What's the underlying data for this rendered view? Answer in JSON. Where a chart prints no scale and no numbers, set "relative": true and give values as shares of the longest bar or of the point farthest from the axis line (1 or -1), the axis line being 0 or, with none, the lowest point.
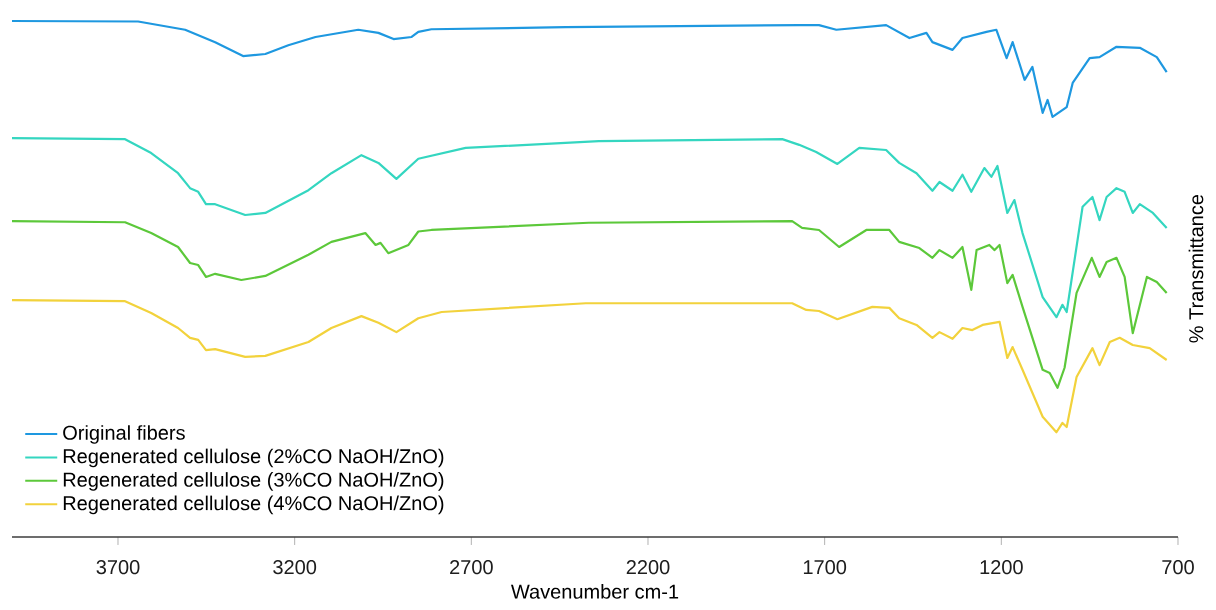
{
  "chart_data": {
    "type": "line",
    "relative": true,
    "xlabel": "Wavenumber cm-1",
    "ylabel": "% Transmittance",
    "xlim": [
      4000,
      700
    ],
    "xticks": [
      3700,
      3200,
      2700,
      2200,
      1700,
      1200,
      700
    ],
    "legend": "bottom left",
    "marker": "none",
    "line_style": "solid",
    "series": [
      {
        "name": "Original fibers",
        "color": "#1e98e0",
        "x": [
          4000,
          3643,
          3510,
          3425,
          3346,
          3283,
          3218,
          3141,
          3020,
          2963,
          2920,
          2869,
          2850,
          2813,
          2433,
          1772,
          1716,
          1667,
          1526,
          1460,
          1412,
          1395,
          1338,
          1310,
          1242,
          1214,
          1185,
          1168,
          1134,
          1112,
          1083,
          1069,
          1055,
          1015,
          998,
          950,
          922,
          874,
          808,
          760,
          732
        ],
        "values": [
          1.0,
          0.999,
          0.983,
          0.959,
          0.932,
          0.936,
          0.953,
          0.969,
          0.983,
          0.977,
          0.965,
          0.969,
          0.979,
          0.984,
          0.988,
          0.992,
          0.992,
          0.983,
          0.992,
          0.967,
          0.977,
          0.959,
          0.944,
          0.967,
          0.979,
          0.983,
          0.928,
          0.959,
          0.886,
          0.911,
          0.822,
          0.847,
          0.814,
          0.833,
          0.88,
          0.928,
          0.93,
          0.95,
          0.948,
          0.93,
          0.901
        ]
      },
      {
        "name": "Regenerated cellulose (2%CO NaOH/ZnO)",
        "color": "#34d6c0",
        "x": [
          4000,
          3680,
          3606,
          3530,
          3496,
          3473,
          3451,
          3425,
          3340,
          3283,
          3161,
          3096,
          3011,
          2963,
          2912,
          2850,
          2716,
          2339,
          1820,
          1772,
          1724,
          1664,
          1602,
          1526,
          1489,
          1440,
          1395,
          1375,
          1338,
          1310,
          1285,
          1248,
          1228,
          1211,
          1183,
          1163,
          1140,
          1083,
          1044,
          1027,
          1015,
          970,
          942,
          922,
          902,
          874,
          851,
          828,
          808,
          771,
          732
        ],
        "values": [
          0.773,
          0.771,
          0.744,
          0.705,
          0.676,
          0.669,
          0.645,
          0.645,
          0.624,
          0.628,
          0.672,
          0.705,
          0.74,
          0.725,
          0.694,
          0.733,
          0.754,
          0.767,
          0.771,
          0.76,
          0.746,
          0.723,
          0.754,
          0.75,
          0.725,
          0.705,
          0.671,
          0.688,
          0.671,
          0.702,
          0.669,
          0.715,
          0.698,
          0.719,
          0.628,
          0.653,
          0.589,
          0.465,
          0.426,
          0.45,
          0.436,
          0.64,
          0.659,
          0.614,
          0.659,
          0.676,
          0.669,
          0.628,
          0.645,
          0.628,
          0.599
        ]
      },
      {
        "name": "Regenerated cellulose (3%CO NaOH/ZnO)",
        "color": "#5cc83a",
        "x": [
          4000,
          3680,
          3606,
          3530,
          3496,
          3473,
          3451,
          3425,
          3351,
          3283,
          3161,
          3096,
          3000,
          2971,
          2957,
          2935,
          2878,
          2850,
          2813,
          2368,
          1792,
          1764,
          1716,
          1659,
          1582,
          1517,
          1489,
          1432,
          1395,
          1375,
          1338,
          1310,
          1285,
          1270,
          1234,
          1219,
          1205,
          1183,
          1168,
          1140,
          1083,
          1063,
          1041,
          1021,
          987,
          944,
          922,
          902,
          874,
          851,
          828,
          788,
          760,
          732
        ],
        "values": [
          0.612,
          0.61,
          0.589,
          0.562,
          0.531,
          0.527,
          0.504,
          0.51,
          0.498,
          0.506,
          0.547,
          0.572,
          0.589,
          0.566,
          0.57,
          0.55,
          0.566,
          0.592,
          0.595,
          0.609,
          0.612,
          0.599,
          0.595,
          0.562,
          0.595,
          0.595,
          0.572,
          0.56,
          0.541,
          0.556,
          0.541,
          0.562,
          0.479,
          0.556,
          0.566,
          0.556,
          0.566,
          0.492,
          0.508,
          0.446,
          0.324,
          0.318,
          0.289,
          0.328,
          0.473,
          0.541,
          0.504,
          0.533,
          0.541,
          0.504,
          0.395,
          0.504,
          0.494,
          0.473
        ]
      },
      {
        "name": "Regenerated cellulose (4%CO NaOH/ZnO)",
        "color": "#f2d23c",
        "x": [
          4000,
          3680,
          3606,
          3530,
          3496,
          3473,
          3451,
          3425,
          3340,
          3283,
          3161,
          3096,
          3011,
          2963,
          2912,
          2850,
          2784,
          2376,
          1792,
          1752,
          1716,
          1664,
          1565,
          1517,
          1489,
          1440,
          1395,
          1375,
          1338,
          1310,
          1282,
          1253,
          1205,
          1183,
          1168,
          1140,
          1083,
          1044,
          1027,
          1015,
          987,
          942,
          922,
          893,
          865,
          828,
          780,
          732
        ],
        "values": [
          0.459,
          0.457,
          0.434,
          0.405,
          0.386,
          0.382,
          0.362,
          0.364,
          0.349,
          0.351,
          0.378,
          0.405,
          0.428,
          0.415,
          0.397,
          0.424,
          0.436,
          0.453,
          0.453,
          0.44,
          0.438,
          0.422,
          0.446,
          0.444,
          0.424,
          0.411,
          0.386,
          0.397,
          0.384,
          0.405,
          0.401,
          0.411,
          0.417,
          0.347,
          0.368,
          0.324,
          0.233,
          0.203,
          0.221,
          0.213,
          0.31,
          0.366,
          0.333,
          0.378,
          0.386,
          0.372,
          0.366,
          0.343
        ]
      }
    ]
  }
}
